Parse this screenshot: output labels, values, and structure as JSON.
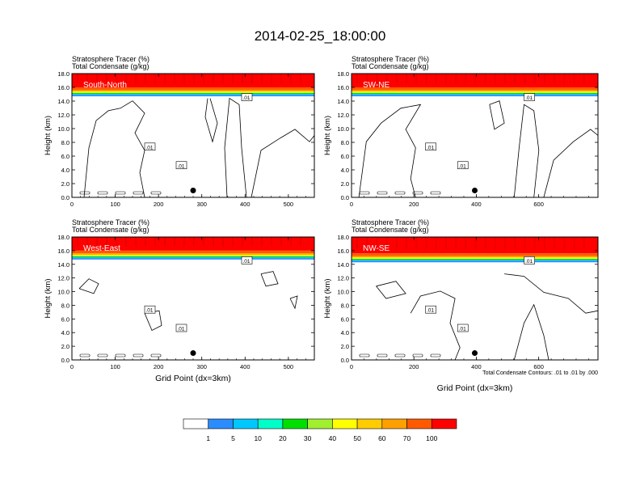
{
  "title": "2014-02-25_18:00:00",
  "header_line1": "Stratosphere Tracer   (%)",
  "header_line2": "Total Condensate   (g/kg)",
  "ylabel": "Height (km)",
  "xlabel": "Grid Point (dx=3km)",
  "contour_note": "Total Condensate Contours: .01 to .01 by .000",
  "contour_label": ".01",
  "colorbar": {
    "colors": [
      "#ffffff",
      "#2b8cff",
      "#00c8ff",
      "#00ffc8",
      "#00e000",
      "#a0f030",
      "#ffff00",
      "#ffcc00",
      "#ffa000",
      "#ff5a00",
      "#ff0000"
    ],
    "labels": [
      "1",
      "5",
      "10",
      "20",
      "30",
      "40",
      "50",
      "60",
      "70",
      "100"
    ]
  },
  "chart_data": [
    {
      "type": "contour",
      "panel": "South-North",
      "xlim": [
        0,
        560
      ],
      "ylim": [
        0,
        18
      ],
      "xticks": [
        "0",
        "100",
        "200",
        "300",
        "400",
        "500"
      ],
      "yticks": [
        "0.0",
        "2.0",
        "4.0",
        "6.0",
        "8.0",
        "10.0",
        "12.0",
        "14.0",
        "16.0",
        "18.0"
      ],
      "marker": [
        280,
        1.0
      ],
      "tracer_top_km": 15.0
    },
    {
      "type": "contour",
      "panel": "SW-NE",
      "xlim": [
        0,
        790
      ],
      "ylim": [
        0,
        18
      ],
      "xticks": [
        "0",
        "200",
        "400",
        "600"
      ],
      "yticks": [
        "0.0",
        "2.0",
        "4.0",
        "6.0",
        "8.0",
        "10.0",
        "12.0",
        "14.0",
        "16.0",
        "18.0"
      ],
      "marker": [
        395,
        1.0
      ],
      "tracer_top_km": 15.0
    },
    {
      "type": "contour",
      "panel": "West-East",
      "xlim": [
        0,
        560
      ],
      "ylim": [
        0,
        18
      ],
      "xticks": [
        "0",
        "100",
        "200",
        "300",
        "400",
        "500"
      ],
      "yticks": [
        "0.0",
        "2.0",
        "4.0",
        "6.0",
        "8.0",
        "10.0",
        "12.0",
        "14.0",
        "16.0",
        "18.0"
      ],
      "marker": [
        280,
        1.0
      ],
      "tracer_top_km": 15.0
    },
    {
      "type": "contour",
      "panel": "NW-SE",
      "xlim": [
        0,
        790
      ],
      "ylim": [
        0,
        18
      ],
      "xticks": [
        "0",
        "200",
        "400",
        "600"
      ],
      "yticks": [
        "0.0",
        "2.0",
        "4.0",
        "6.0",
        "8.0",
        "10.0",
        "12.0",
        "14.0",
        "16.0",
        "18.0"
      ],
      "marker": [
        395,
        1.0
      ],
      "tracer_top_km": 14.6
    }
  ]
}
